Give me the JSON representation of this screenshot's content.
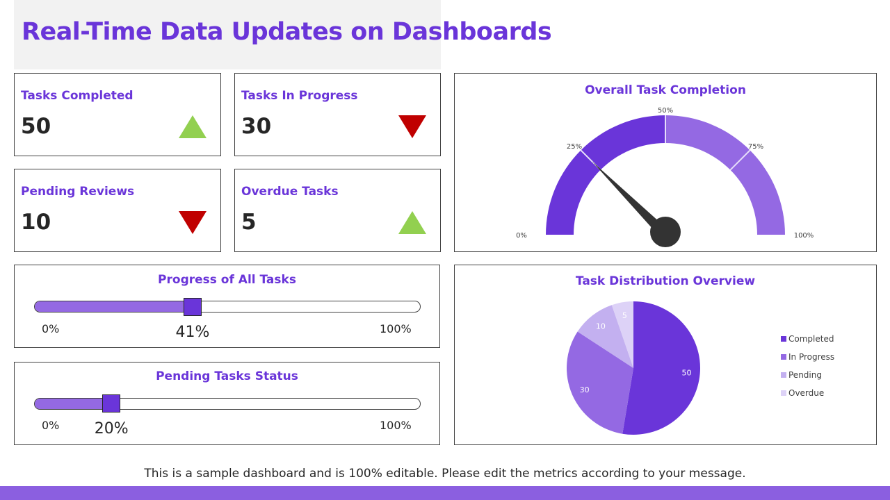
{
  "title": "Real-Time Data Updates on Dashboards",
  "kpis": [
    {
      "label": "Tasks Completed",
      "value": "50",
      "trend": "up"
    },
    {
      "label": "Tasks In Progress",
      "value": "30",
      "trend": "down"
    },
    {
      "label": "Pending Reviews",
      "value": "10",
      "trend": "down"
    },
    {
      "label": "Overdue Tasks",
      "value": "5",
      "trend": "up"
    }
  ],
  "progress": [
    {
      "title": "Progress of All Tasks",
      "value": 41,
      "value_label": "41%",
      "min_label": "0%",
      "max_label": "100%"
    },
    {
      "title": "Pending Tasks Status",
      "value": 20,
      "value_label": "20%",
      "min_label": "0%",
      "max_label": "100%"
    }
  ],
  "chart_data": [
    {
      "type": "gauge",
      "title": "Overall Task Completion",
      "value": 25,
      "ticks": [
        "0%",
        "25%",
        "50%",
        "75%",
        "100%"
      ],
      "bands": [
        {
          "from": 0,
          "to": 50,
          "color": "#6a35d9"
        },
        {
          "from": 50,
          "to": 100,
          "color": "#9469e3"
        }
      ]
    },
    {
      "type": "pie",
      "title": "Task Distribution Overview",
      "categories": [
        "Completed",
        "In Progress",
        "Pending",
        "Overdue"
      ],
      "values": [
        50,
        30,
        10,
        5
      ],
      "colors": [
        "#6a35d9",
        "#9469e3",
        "#c3b0f0",
        "#ddd2f7"
      ],
      "legend": "right"
    }
  ],
  "footer": "This is a sample dashboard and is 100% editable. Please edit the metrics according to your message."
}
